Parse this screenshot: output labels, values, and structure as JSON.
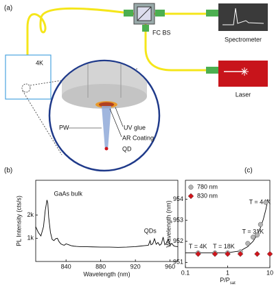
{
  "diagram": {
    "panel_label": "(a)",
    "splitter": "FC BS",
    "spectrometer": "Spectrometer",
    "laser": "Laser",
    "cryostat": "4K",
    "pw": "PW",
    "uv_glue": "UV glue",
    "ar_coating": "AR Coating",
    "qd": "QD"
  },
  "chart_data": [
    {
      "type": "line",
      "panel_label": "(b)",
      "xlabel": "Wavelength (nm)",
      "ylabel": "PL Intensity (cts/s)",
      "xlim": [
        805,
        969
      ],
      "xticks": [
        840,
        880,
        920,
        960
      ],
      "ylim": [
        0,
        3500
      ],
      "yticks": [
        {
          "value": 1000,
          "label": "1k"
        },
        {
          "value": 2000,
          "label": "2k"
        }
      ],
      "annotations": [
        "GaAs bulk",
        "QDs"
      ],
      "color": "#000000",
      "x": [
        805,
        808,
        811,
        814,
        816,
        818,
        819,
        820,
        822,
        824,
        826,
        828,
        830,
        832,
        834,
        836,
        838,
        840,
        843,
        846,
        849,
        852,
        856,
        860,
        870,
        880,
        890,
        900,
        910,
        920,
        925,
        930,
        935,
        937,
        938,
        940,
        942,
        944,
        946,
        948,
        950,
        952,
        954,
        956,
        958,
        960,
        962,
        964,
        966,
        969
      ],
      "values": [
        1500,
        1250,
        1100,
        1500,
        2200,
        2650,
        2500,
        1900,
        1250,
        950,
        900,
        980,
        1000,
        850,
        760,
        720,
        700,
        760,
        720,
        680,
        660,
        650,
        640,
        640,
        630,
        620,
        620,
        610,
        620,
        640,
        660,
        680,
        700,
        900,
        720,
        760,
        980,
        740,
        820,
        700,
        760,
        1050,
        720,
        800,
        950,
        700,
        780,
        680,
        650,
        640
      ]
    },
    {
      "type": "scatter",
      "panel_label": "(c)",
      "xlabel_main": "P/P",
      "xlabel_sub": "sat",
      "ylabel": "Wavelength (nm)",
      "xscale": "log",
      "xlim": [
        0.1,
        10
      ],
      "xticks": [
        0.1,
        1,
        10
      ],
      "ylim": [
        950.75,
        954.9
      ],
      "yticks": [
        951,
        952,
        953,
        954
      ],
      "legend": "upper left",
      "annotations": [
        "T = 4K",
        "T = 18K",
        "T = 31K",
        "T = 44K"
      ],
      "series": [
        {
          "name": "780 nm",
          "color": "#b4b4b4",
          "marker": "circle",
          "x": [
            0.2,
            0.5,
            1,
            2,
            3,
            4,
            5,
            6,
            8
          ],
          "values": [
            951.45,
            951.45,
            951.45,
            951.5,
            951.9,
            952.2,
            952.3,
            952.8,
            953.85
          ]
        },
        {
          "name": "830 nm",
          "color": "#d0141b",
          "marker": "diamond",
          "x": [
            0.2,
            0.5,
            1,
            2,
            5,
            10
          ],
          "values": [
            951.4,
            951.4,
            951.4,
            951.4,
            951.4,
            951.4
          ]
        }
      ],
      "fit": {
        "color": "#000000",
        "x": [
          0.1,
          0.5,
          1,
          2,
          3,
          4,
          5,
          6,
          7,
          8,
          9
        ],
        "values": [
          951.45,
          951.45,
          951.46,
          951.55,
          951.75,
          952.0,
          952.3,
          952.65,
          953.05,
          953.5,
          954.0
        ]
      }
    }
  ]
}
